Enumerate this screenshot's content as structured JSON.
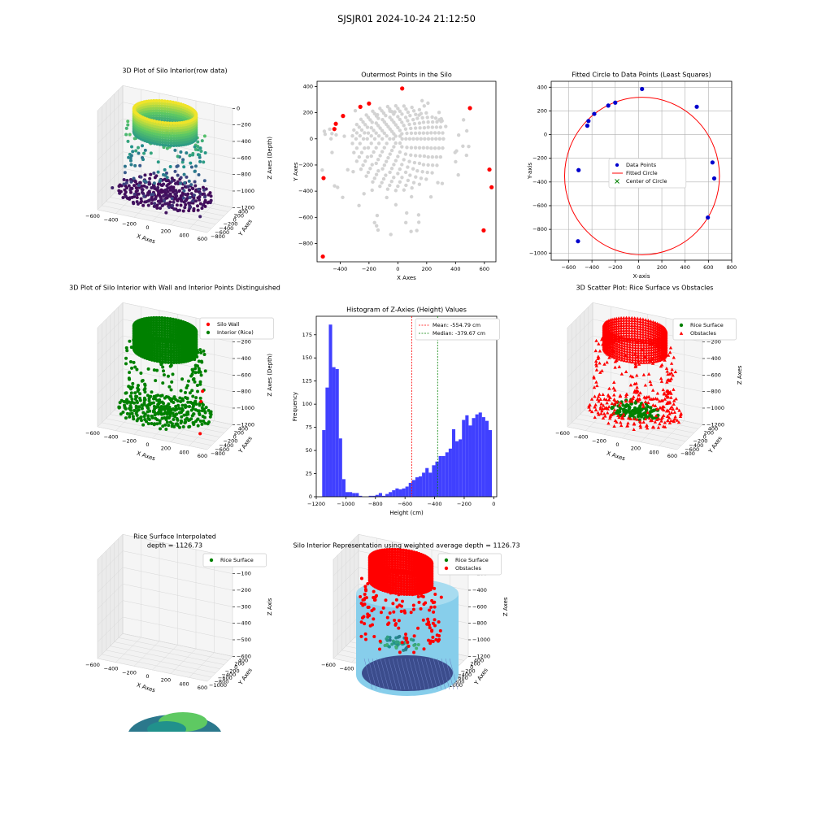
{
  "figure": {
    "title": "SJSJR01 2024-10-24 21:12:50"
  },
  "colors": {
    "red": "#ff0000",
    "green": "#008000",
    "blue": "#0000cd",
    "gray": "#d3d3d3",
    "hist": "#4040ff",
    "skyblue": "#87ceeb",
    "viridis_low": "#440154",
    "viridis_mid": "#21918c",
    "viridis_high": "#fde725"
  },
  "chart_data": [
    {
      "id": "p1",
      "type": "scatter3d",
      "title": "3D Plot of Silo Interior(row data)",
      "xlabel": "X Axes",
      "ylabel": "Y Axes",
      "zlabel": "Z Axes (Depth)",
      "xticks": [
        "−600",
        "−400",
        "−200",
        "0",
        "200",
        "400",
        "600"
      ],
      "yticks": [
        "400",
        "200",
        "0",
        "−200",
        "−400",
        "−600",
        "−800"
      ],
      "zticks": [
        "0",
        "−200",
        "−400",
        "−600",
        "−800",
        "−1000",
        "−1200"
      ],
      "colormap": "viridis",
      "layers": [
        {
          "name": "upper ring",
          "z": -100,
          "radius": 250
        },
        {
          "name": "lower bed",
          "z": -1100,
          "radius": 300
        }
      ]
    },
    {
      "id": "p2",
      "type": "scatter",
      "title": "Outermost Points in the Silo",
      "xlabel": "X Axes",
      "ylabel": "Y Axes",
      "xlim": [
        -560,
        680
      ],
      "ylim": [
        -940,
        440
      ],
      "xticks": [
        -400,
        -200,
        0,
        200,
        400,
        600
      ],
      "yticks": [
        400,
        200,
        0,
        -200,
        -400,
        -600,
        -800
      ],
      "outermost_points": [
        [
          -520,
          -900
        ],
        [
          -515,
          -300
        ],
        [
          -440,
          75
        ],
        [
          -430,
          115
        ],
        [
          -380,
          175
        ],
        [
          -260,
          245
        ],
        [
          -200,
          270
        ],
        [
          30,
          385
        ],
        [
          500,
          235
        ],
        [
          595,
          -700
        ],
        [
          635,
          -235
        ],
        [
          650,
          -370
        ]
      ]
    },
    {
      "id": "p3",
      "type": "scatter",
      "title": "Fitted Circle to Data Points (Least Squares)",
      "xlabel": "X-axis",
      "ylabel": "Y-axis",
      "xlim": [
        -750,
        800
      ],
      "ylim": [
        -1060,
        450
      ],
      "xticks": [
        -600,
        -400,
        -200,
        0,
        200,
        400,
        600,
        800
      ],
      "yticks": [
        400,
        200,
        0,
        -200,
        -400,
        -600,
        -800,
        -1000
      ],
      "legend": [
        "Data Points",
        "Fitted Circle",
        "Center of Circle"
      ],
      "points": [
        [
          -520,
          -900
        ],
        [
          -515,
          -300
        ],
        [
          -440,
          75
        ],
        [
          -430,
          115
        ],
        [
          -380,
          175
        ],
        [
          -260,
          245
        ],
        [
          -200,
          270
        ],
        [
          30,
          385
        ],
        [
          500,
          235
        ],
        [
          595,
          -700
        ],
        [
          635,
          -235
        ],
        [
          650,
          -370
        ]
      ],
      "circle": {
        "cx": 30,
        "cy": -350,
        "r": 665
      }
    },
    {
      "id": "p4",
      "type": "scatter3d",
      "title": "3D Plot of Silo Interior with Wall and Interior Points Distinguished",
      "xlabel": "X Axes",
      "ylabel": "Y Axes",
      "zlabel": "Z Axes (Depth)",
      "xticks": [
        "−600",
        "−400",
        "−200",
        "0",
        "200",
        "400",
        "600"
      ],
      "yticks": [
        "400",
        "200",
        "0",
        "−200",
        "−400",
        "−600",
        "−800"
      ],
      "zticks": [
        "0",
        "−200",
        "−400",
        "−600",
        "−800",
        "−1000",
        "−1200"
      ],
      "legend": [
        "Silo Wall",
        "Interior (Rice)"
      ]
    },
    {
      "id": "p5",
      "type": "bar",
      "title": "Histogram of Z-Axies (Height) Values",
      "xlabel": "Height (cm)",
      "ylabel": "Frequency",
      "xlim": [
        -1200,
        20
      ],
      "ylim": [
        0,
        195
      ],
      "xticks": [
        -1200,
        -1000,
        -800,
        -600,
        -400,
        -200,
        0
      ],
      "yticks": [
        0,
        25,
        50,
        75,
        100,
        125,
        150,
        175
      ],
      "bin_start": -1160,
      "bin_width": 22.5,
      "values": [
        72,
        118,
        186,
        140,
        138,
        63,
        19,
        5,
        5,
        4,
        4,
        1,
        0,
        0,
        1,
        1,
        2,
        4,
        1,
        3,
        5,
        7,
        9,
        8,
        9,
        11,
        15,
        18,
        21,
        22,
        26,
        31,
        26,
        34,
        38,
        44,
        44,
        48,
        52,
        73,
        60,
        62,
        83,
        88,
        77,
        85,
        89,
        91,
        86,
        82,
        72
      ],
      "mean": -554.79,
      "median": -379.67,
      "legend": [
        "Mean: -554.79 cm",
        "Median: -379.67 cm"
      ]
    },
    {
      "id": "p6",
      "type": "scatter3d",
      "title": "3D Scatter Plot: Rice Surface vs Obstacles",
      "xlabel": "X Axes",
      "ylabel": "Y Axes",
      "zlabel": "Z Axes",
      "xticks": [
        "−600",
        "−400",
        "−200",
        "0",
        "200",
        "400",
        "600"
      ],
      "yticks": [
        "400",
        "200",
        "0",
        "−200",
        "−400",
        "−600",
        "−800"
      ],
      "zticks": [
        "0",
        "−200",
        "−400",
        "−600",
        "−800",
        "−1000",
        "−1200"
      ],
      "legend": [
        "Rice Surface",
        "Obstacles"
      ]
    },
    {
      "id": "p7",
      "type": "surface3d",
      "title": "Rice Surface Interpolated",
      "subtitle": "depth = 1126.73",
      "xlabel": "X Axes",
      "ylabel": "Y Axes",
      "zlabel": "Z Axis",
      "xticks": [
        "−600",
        "−400",
        "−200",
        "0",
        "200",
        "400",
        "600"
      ],
      "yticks": [
        "400",
        "200",
        "0",
        "−200",
        "−400",
        "−600",
        "−800",
        "−1000"
      ],
      "zticks": [
        "0",
        "−100",
        "−200",
        "−300",
        "−400",
        "−500",
        "−600"
      ],
      "legend": [
        "Rice Surface"
      ]
    },
    {
      "id": "p8",
      "type": "scatter3d",
      "title": "Silo Interior Representation using weighted average depth = 1126.73",
      "xlabel": "X Axes",
      "ylabel": "Y Axes",
      "zlabel": "Z Axes",
      "xticks": [
        "−600",
        "−400",
        "−200",
        "0",
        "200",
        "400",
        "600"
      ],
      "yticks": [
        "400",
        "200",
        "0",
        "−200",
        "−400",
        "−600",
        "−800",
        "−1000"
      ],
      "zticks": [
        "0",
        "−200",
        "−400",
        "−600",
        "−800",
        "−1000",
        "−1200"
      ],
      "legend": [
        "Rice Surface",
        "Obstacles"
      ]
    }
  ]
}
